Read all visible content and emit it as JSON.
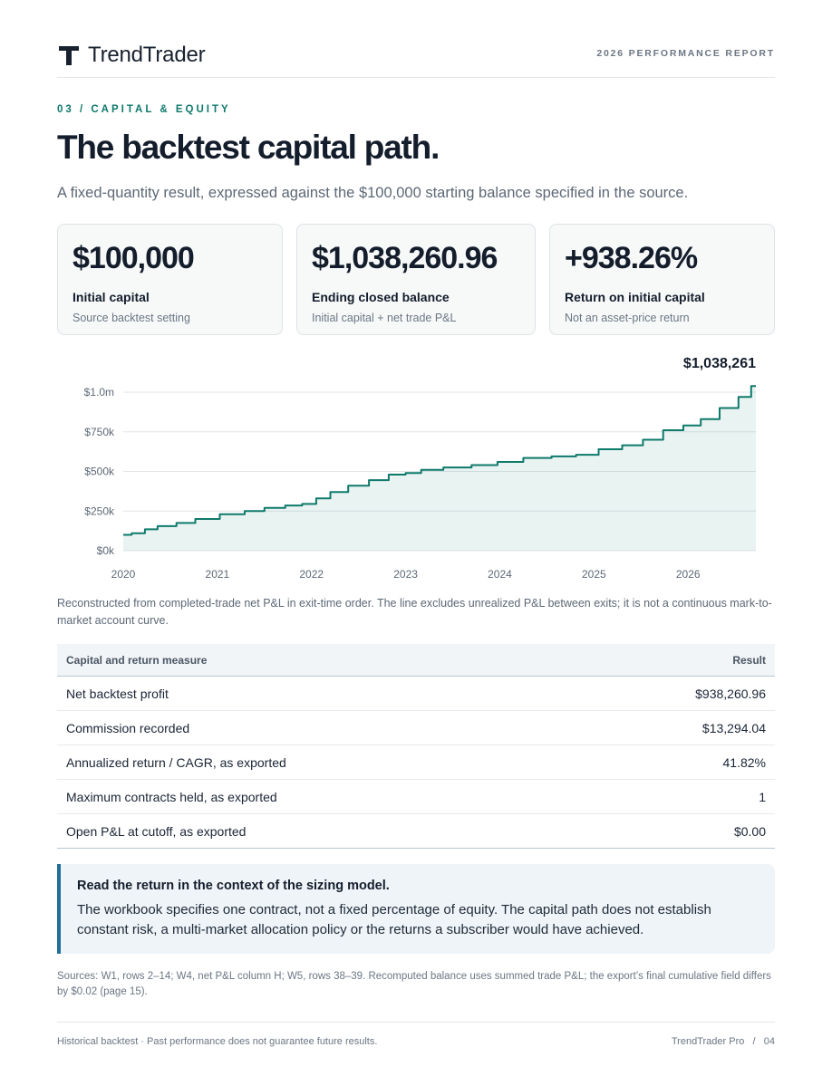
{
  "header": {
    "brand": "TrendTrader",
    "report_label": "2026 PERFORMANCE REPORT"
  },
  "section": {
    "eyebrow": "03 / CAPITAL & EQUITY",
    "title": "The backtest capital path.",
    "subtitle": "A fixed-quantity result, expressed against the $100,000 starting balance specified in the source."
  },
  "cards": [
    {
      "value": "$100,000",
      "label": "Initial capital",
      "sub": "Source backtest setting"
    },
    {
      "value": "$1,038,260.96",
      "label": "Ending closed balance",
      "sub": "Initial capital + net trade P&L"
    },
    {
      "value": "+938.26%",
      "label": "Return on initial capital",
      "sub": "Not an asset-price return"
    }
  ],
  "chart_data": {
    "type": "area",
    "end_label": "$1,038,261",
    "x_ticks": [
      "2020",
      "2021",
      "2022",
      "2023",
      "2024",
      "2025",
      "2026"
    ],
    "y_ticks": [
      "$0k",
      "$250k",
      "$500k",
      "$750k",
      "$1.0m"
    ],
    "ylim": [
      0,
      1000000
    ],
    "xlim": [
      2020.0,
      2026.72
    ],
    "grid": true,
    "color": "#0e7a6b",
    "x": [
      2020.0,
      2020.18,
      2020.28,
      2020.45,
      2020.68,
      2020.85,
      2021.2,
      2021.38,
      2021.62,
      2021.82,
      2021.98,
      2022.12,
      2022.28,
      2022.5,
      2022.72,
      2022.92,
      2023.08,
      2023.25,
      2023.55,
      2023.85,
      2024.1,
      2024.4,
      2024.7,
      2024.92,
      2025.18,
      2025.42,
      2025.62,
      2025.85,
      2026.05,
      2026.22,
      2026.45,
      2026.62,
      2026.72
    ],
    "y": [
      100000,
      110000,
      135000,
      155000,
      175000,
      200000,
      230000,
      250000,
      270000,
      285000,
      295000,
      330000,
      370000,
      410000,
      445000,
      480000,
      490000,
      510000,
      525000,
      540000,
      560000,
      585000,
      595000,
      605000,
      640000,
      665000,
      700000,
      760000,
      790000,
      830000,
      900000,
      970000,
      1038261
    ]
  },
  "chart_note": "Reconstructed from completed-trade net P&L in exit-time order. The line excludes unrealized P&L between exits; it is not a continuous mark-to-market account curve.",
  "table": {
    "headers": [
      "Capital and return measure",
      "Result"
    ],
    "rows": [
      {
        "label": "Net backtest profit",
        "value": "$938,260.96"
      },
      {
        "label": "Commission recorded",
        "value": "$13,294.04"
      },
      {
        "label": "Annualized return / CAGR, as exported",
        "value": "41.82%"
      },
      {
        "label": "Maximum contracts held, as exported",
        "value": "1"
      },
      {
        "label": "Open P&L at cutoff, as exported",
        "value": "$0.00"
      }
    ]
  },
  "callout": {
    "title": "Read the return in the context of the sizing model.",
    "body": "The workbook specifies one contract, not a fixed percentage of equity. The capital path does not establish constant risk, a multi-market allocation policy or the returns a subscriber would have achieved."
  },
  "sources": "Sources: W1, rows 2–14; W4, net P&L column H; W5, rows 38–39. Recomputed balance uses summed trade P&L; the export’s final cumulative field differs by $0.02 (page 15).",
  "footer": {
    "left": "Historical backtest · Past performance does not guarantee future results.",
    "right": "TrendTrader Pro   /   04"
  }
}
